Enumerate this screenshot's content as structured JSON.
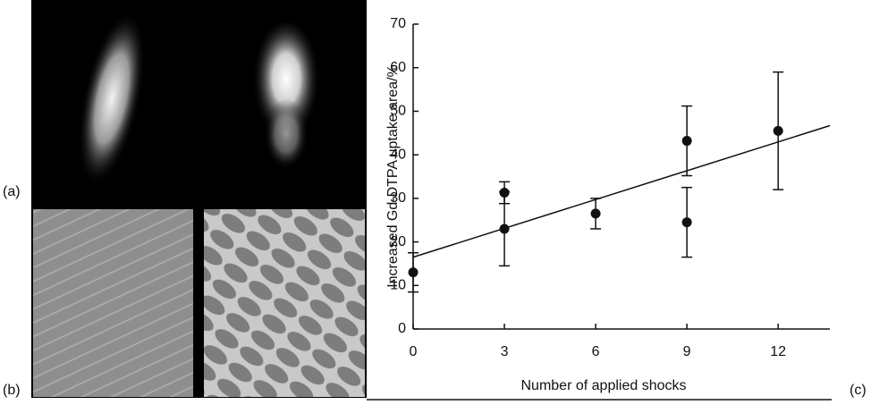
{
  "figure": {
    "panel_labels": [
      "(a)",
      "(b)",
      "(c)"
    ]
  },
  "chart_data": {
    "type": "scatter",
    "x_label": "Number of applied shocks",
    "y_label": "Increased Gd-DTPA uptake area/%",
    "xlim": [
      0,
      13.7
    ],
    "ylim": [
      0,
      70
    ],
    "xticks": [
      0,
      3,
      6,
      9,
      12
    ],
    "yticks": [
      0,
      10,
      20,
      30,
      40,
      50,
      60,
      70
    ],
    "series": [
      {
        "color": "#111111",
        "x": [
          0,
          3,
          3,
          6,
          9,
          9,
          12
        ],
        "values": [
          13,
          31.3,
          23,
          26.5,
          43.2,
          24.5,
          45.5
        ],
        "errors": [
          4.5,
          2.5,
          8.5,
          3.5,
          8,
          8,
          13.5
        ]
      }
    ],
    "trend_line": {
      "color": "#111111",
      "x": [
        0,
        13.7
      ],
      "values": [
        16.5,
        46.7
      ]
    }
  }
}
